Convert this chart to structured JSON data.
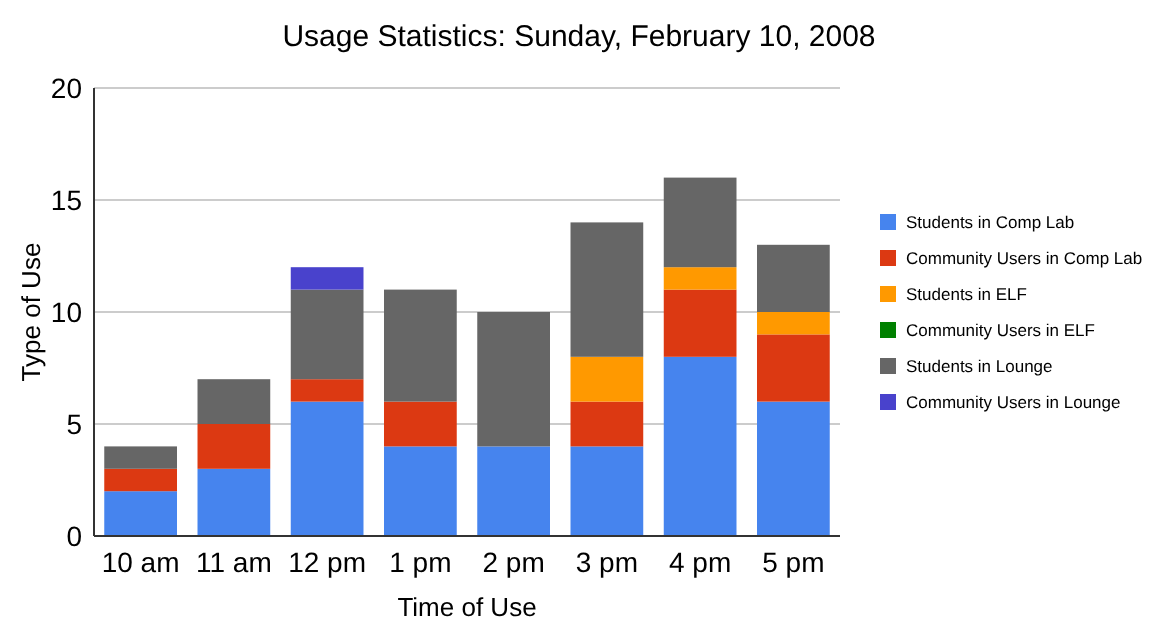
{
  "chart_data": {
    "type": "bar",
    "title": "Usage Statistics: Sunday, February 10, 2008",
    "xlabel": "Time of Use",
    "ylabel": "Type of Use",
    "categories": [
      "10 am",
      "11 am",
      "12 pm",
      "1 pm",
      "2 pm",
      "3 pm",
      "4 pm",
      "5 pm"
    ],
    "stacked": true,
    "ylim": [
      0,
      20
    ],
    "yticks": [
      0,
      5,
      10,
      15,
      20
    ],
    "grid": "y",
    "legend": "right",
    "series": [
      {
        "name": "Students in Comp Lab",
        "color": "#4684ee",
        "values": [
          2,
          3,
          6,
          4,
          4,
          4,
          8,
          6
        ]
      },
      {
        "name": "Community Users in Comp Lab",
        "color": "#dc3912",
        "values": [
          1,
          2,
          1,
          2,
          0,
          2,
          3,
          3
        ]
      },
      {
        "name": "Students in ELF",
        "color": "#ff9900",
        "values": [
          0,
          0,
          0,
          0,
          0,
          2,
          1,
          1
        ]
      },
      {
        "name": "Community Users in ELF",
        "color": "#008000",
        "values": [
          0,
          0,
          0,
          0,
          0,
          0,
          0,
          0
        ]
      },
      {
        "name": "Students in Lounge",
        "color": "#666666",
        "values": [
          1,
          2,
          4,
          5,
          6,
          6,
          4,
          3
        ]
      },
      {
        "name": "Community Users in Lounge",
        "color": "#4942cc",
        "values": [
          0,
          0,
          1,
          0,
          0,
          0,
          0,
          0
        ]
      }
    ]
  }
}
